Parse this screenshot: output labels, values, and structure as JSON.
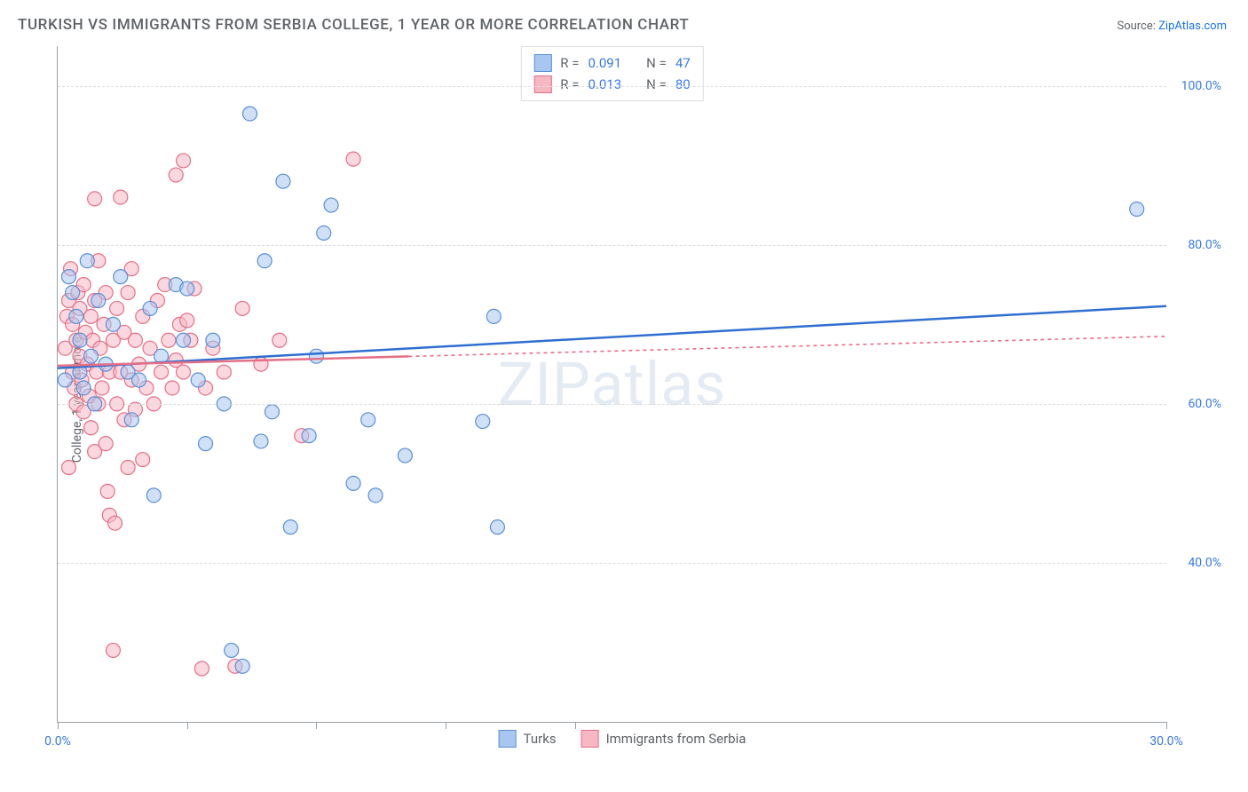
{
  "title": "TURKISH VS IMMIGRANTS FROM SERBIA COLLEGE, 1 YEAR OR MORE CORRELATION CHART",
  "source_prefix": "Source: ",
  "source_name": "ZipAtlas.com",
  "watermark": "ZIPatlas",
  "chart": {
    "type": "scatter",
    "ylabel": "College, 1 year or more",
    "xlim": [
      0,
      30
    ],
    "ylim": [
      20,
      105
    ],
    "xtick_positions": [
      0,
      3.5,
      7.0,
      10.5,
      14.0,
      30.0
    ],
    "xtick_labels": {
      "0": "0.0%",
      "30": "30.0%"
    },
    "ytick_positions": [
      40,
      60,
      80,
      100
    ],
    "ytick_labels": [
      "40.0%",
      "60.0%",
      "80.0%",
      "100.0%"
    ],
    "grid_color": "#dadce0",
    "axis_color": "#9aa0a6",
    "background": "#ffffff",
    "marker_radius": 8,
    "marker_opacity": 0.55,
    "series": [
      {
        "name": "Turks",
        "fill": "#a8c7f0",
        "stroke": "#5b8fd6",
        "line_color": "#2f6fd0",
        "line_dash": "none",
        "R": "0.091",
        "N": "47",
        "trend": {
          "x1": 0,
          "y1": 64.5,
          "x2": 30,
          "y2": 72.3
        },
        "points": [
          [
            0.2,
            63
          ],
          [
            0.3,
            76
          ],
          [
            0.4,
            74
          ],
          [
            0.5,
            71
          ],
          [
            0.6,
            68
          ],
          [
            0.6,
            64
          ],
          [
            0.7,
            62
          ],
          [
            0.8,
            78
          ],
          [
            0.9,
            66
          ],
          [
            1.0,
            60
          ],
          [
            1.1,
            73
          ],
          [
            1.3,
            65
          ],
          [
            1.5,
            70
          ],
          [
            1.7,
            76
          ],
          [
            1.9,
            64
          ],
          [
            2.0,
            58
          ],
          [
            2.2,
            63
          ],
          [
            2.5,
            72
          ],
          [
            2.8,
            66
          ],
          [
            2.6,
            48.5
          ],
          [
            3.2,
            75
          ],
          [
            3.4,
            68
          ],
          [
            3.5,
            74.5
          ],
          [
            3.8,
            63
          ],
          [
            4.0,
            55
          ],
          [
            4.2,
            68
          ],
          [
            4.5,
            60
          ],
          [
            4.7,
            29
          ],
          [
            5.0,
            27
          ],
          [
            5.2,
            96.5
          ],
          [
            5.5,
            55.3
          ],
          [
            5.8,
            59
          ],
          [
            6.1,
            88
          ],
          [
            6.3,
            44.5
          ],
          [
            6.8,
            56
          ],
          [
            7.0,
            66
          ],
          [
            7.2,
            81.5
          ],
          [
            7.4,
            85
          ],
          [
            8.0,
            50
          ],
          [
            8.4,
            58
          ],
          [
            8.6,
            48.5
          ],
          [
            9.4,
            53.5
          ],
          [
            11.5,
            57.8
          ],
          [
            11.8,
            71
          ],
          [
            11.9,
            44.5
          ],
          [
            29.2,
            84.5
          ],
          [
            5.6,
            78
          ]
        ]
      },
      {
        "name": "Immigrants from Serbia",
        "fill": "#f7b8c4",
        "stroke": "#e56f87",
        "line_color": "#e56f87",
        "line_dash": "4 4",
        "solid_until_x": 9.5,
        "R": "0.013",
        "N": "80",
        "trend": {
          "x1": 0,
          "y1": 64.8,
          "x2": 30,
          "y2": 68.5
        },
        "points": [
          [
            0.2,
            67
          ],
          [
            0.25,
            71
          ],
          [
            0.3,
            73
          ],
          [
            0.35,
            77
          ],
          [
            0.4,
            70
          ],
          [
            0.4,
            64
          ],
          [
            0.45,
            62
          ],
          [
            0.5,
            60
          ],
          [
            0.5,
            68
          ],
          [
            0.55,
            74
          ],
          [
            0.6,
            72
          ],
          [
            0.6,
            66
          ],
          [
            0.65,
            63
          ],
          [
            0.7,
            59
          ],
          [
            0.7,
            75
          ],
          [
            0.75,
            69
          ],
          [
            0.8,
            65
          ],
          [
            0.85,
            61
          ],
          [
            0.9,
            57
          ],
          [
            0.9,
            71
          ],
          [
            0.95,
            68
          ],
          [
            1.0,
            54
          ],
          [
            1.0,
            73
          ],
          [
            1.05,
            64
          ],
          [
            1.1,
            60
          ],
          [
            1.1,
            78
          ],
          [
            1.15,
            67
          ],
          [
            1.2,
            62
          ],
          [
            1.25,
            70
          ],
          [
            1.3,
            55
          ],
          [
            1.3,
            74
          ],
          [
            1.35,
            49
          ],
          [
            1.4,
            64
          ],
          [
            1.4,
            46
          ],
          [
            1.5,
            29
          ],
          [
            1.5,
            68
          ],
          [
            1.55,
            45
          ],
          [
            1.6,
            72
          ],
          [
            1.6,
            60
          ],
          [
            1.7,
            86
          ],
          [
            1.7,
            64
          ],
          [
            1.8,
            58
          ],
          [
            1.8,
            69
          ],
          [
            1.9,
            52
          ],
          [
            1.9,
            74
          ],
          [
            2.0,
            63
          ],
          [
            2.0,
            77
          ],
          [
            2.1,
            59.3
          ],
          [
            2.1,
            68
          ],
          [
            2.2,
            65
          ],
          [
            2.3,
            53
          ],
          [
            2.3,
            71
          ],
          [
            2.4,
            62
          ],
          [
            2.5,
            67
          ],
          [
            2.6,
            60
          ],
          [
            2.7,
            73
          ],
          [
            2.8,
            64
          ],
          [
            2.9,
            75
          ],
          [
            3.0,
            68
          ],
          [
            3.1,
            62
          ],
          [
            3.2,
            88.8
          ],
          [
            3.2,
            65.5
          ],
          [
            3.3,
            70
          ],
          [
            3.4,
            90.6
          ],
          [
            3.4,
            64
          ],
          [
            3.5,
            70.5
          ],
          [
            3.6,
            68
          ],
          [
            3.7,
            74.5
          ],
          [
            3.9,
            26.7
          ],
          [
            4.0,
            62
          ],
          [
            4.2,
            67
          ],
          [
            4.5,
            64
          ],
          [
            4.8,
            27
          ],
          [
            5.0,
            72
          ],
          [
            5.5,
            65
          ],
          [
            6.0,
            68
          ],
          [
            6.6,
            56
          ],
          [
            8.0,
            90.8
          ],
          [
            1.0,
            85.8
          ],
          [
            0.3,
            52
          ]
        ]
      }
    ]
  },
  "legend": {
    "stats_label_R": "R =",
    "stats_label_N": "N ="
  }
}
